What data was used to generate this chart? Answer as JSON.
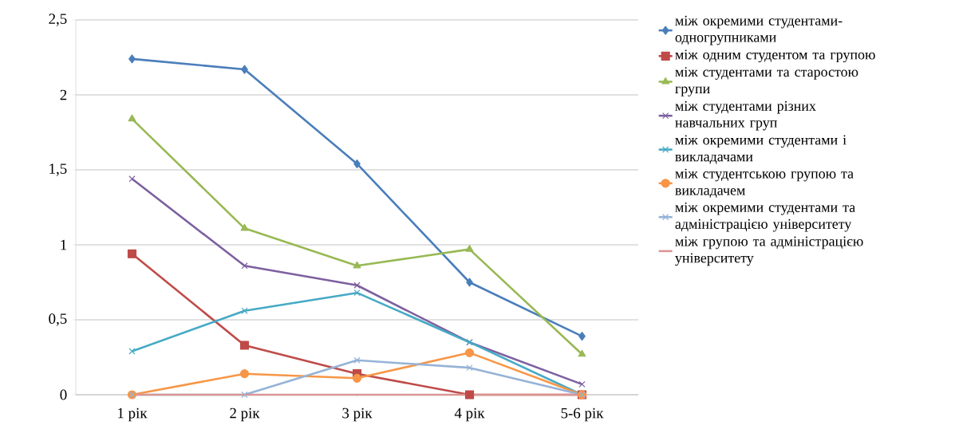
{
  "chart_data": {
    "type": "line",
    "categories": [
      "1 рік",
      "2 рік",
      "3 рік",
      "4 рік",
      "5-6 рік"
    ],
    "ylim": [
      0,
      2.5
    ],
    "yticks": [
      0,
      {
        "value": 0.5,
        "label": "0,5"
      },
      1,
      {
        "value": 1.5,
        "label": "1,5"
      },
      2,
      {
        "value": 2.5,
        "label": "2,5"
      }
    ],
    "grid": "y",
    "legend": "right",
    "series": [
      {
        "name": "між окремими студентами-одногрупниками",
        "color": "#4a7ebb",
        "marker": "diamond",
        "values": [
          2.24,
          2.17,
          1.54,
          0.75,
          0.39
        ]
      },
      {
        "name": "між одним студентом та групою",
        "color": "#be4b48",
        "marker": "square",
        "values": [
          0.94,
          0.33,
          0.14,
          0,
          0
        ]
      },
      {
        "name": "між студентами та старостою групи",
        "color": "#98b954",
        "marker": "triangle",
        "values": [
          1.84,
          1.11,
          0.86,
          0.97,
          0.27
        ]
      },
      {
        "name": "між студентами різних навчальних груп",
        "color": "#7d60a0",
        "marker": "cross",
        "values": [
          1.44,
          0.86,
          0.73,
          0.35,
          0.07
        ]
      },
      {
        "name": "між окремими студентами і викладачами",
        "color": "#46aac5",
        "marker": "cross",
        "values": [
          0.29,
          0.56,
          0.68,
          0.35,
          0
        ]
      },
      {
        "name": "між студентською групою та викладачем",
        "color": "#f79646",
        "marker": "circle",
        "values": [
          0,
          0.14,
          0.11,
          0.28,
          0
        ]
      },
      {
        "name": "між окремими студентами та адміністрацією університету",
        "color": "#95b3d7",
        "marker": "cross",
        "values": [
          0,
          0,
          0.23,
          0.18,
          0
        ]
      },
      {
        "name": "між групою та адміністрацією університету",
        "color": "#d99694",
        "marker": "none",
        "values": [
          0,
          0,
          0,
          0,
          0
        ]
      }
    ]
  }
}
